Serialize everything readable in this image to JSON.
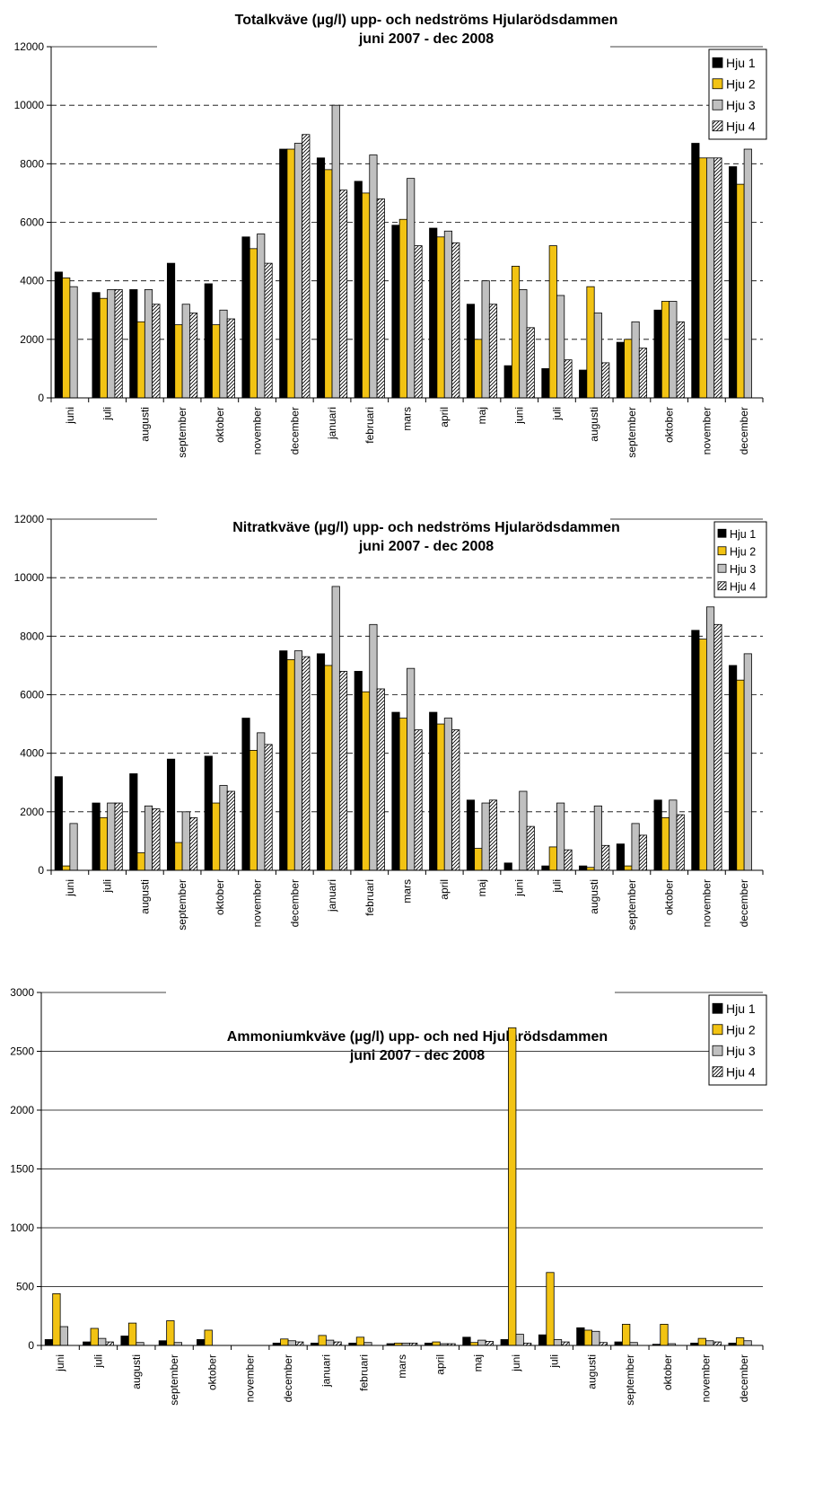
{
  "colors": {
    "hju1": "#000000",
    "hju2": "#f2c313",
    "hju3": "#c0c0c0",
    "hju4_hatch": "#000000",
    "grid": "#000000",
    "axis": "#000000"
  },
  "chart_data": [
    {
      "type": "bar",
      "title": "Totalkväve (µg/l) upp- och nedströms Hjularödsdammen",
      "subtitle": "juni 2007 - dec 2008",
      "xlabel": "",
      "ylabel": "",
      "ylim": [
        0,
        12000
      ],
      "yticks": [
        0,
        2000,
        4000,
        6000,
        8000,
        10000,
        12000
      ],
      "grid": "dashed",
      "legend": "top-right",
      "categories": [
        "juni",
        "juli",
        "augusti",
        "september",
        "oktober",
        "november",
        "december",
        "januari",
        "februari",
        "mars",
        "april",
        "maj",
        "juni",
        "juli",
        "augusti",
        "september",
        "oktober",
        "november",
        "december"
      ],
      "series": [
        {
          "name": "Hju 1",
          "values": [
            4300,
            3600,
            3700,
            4600,
            3900,
            5500,
            8500,
            8200,
            7400,
            5900,
            5800,
            3200,
            1100,
            1000,
            950,
            1900,
            3000,
            8700,
            7900
          ]
        },
        {
          "name": "Hju 2",
          "values": [
            4100,
            3400,
            2600,
            2500,
            2500,
            5100,
            8500,
            7800,
            7000,
            6100,
            5500,
            2000,
            4500,
            5200,
            3800,
            2000,
            3300,
            8200,
            7300
          ]
        },
        {
          "name": "Hju 3",
          "values": [
            3800,
            3700,
            3700,
            3200,
            3000,
            5600,
            8700,
            10000,
            8300,
            7500,
            5700,
            4000,
            3700,
            3500,
            2900,
            2600,
            3300,
            8200,
            8500
          ]
        },
        {
          "name": "Hju 4",
          "values": [
            null,
            3700,
            3200,
            2900,
            2700,
            4600,
            9000,
            7100,
            6800,
            5200,
            5300,
            3200,
            2400,
            1300,
            1200,
            1700,
            2600,
            8200,
            null
          ]
        }
      ]
    },
    {
      "type": "bar",
      "title": "Nitratkväve (µg/l) upp- och nedströms Hjularödsdammen",
      "subtitle": "juni 2007 - dec 2008",
      "xlabel": "",
      "ylabel": "",
      "ylim": [
        0,
        12000
      ],
      "yticks": [
        0,
        2000,
        4000,
        6000,
        8000,
        10000,
        12000
      ],
      "grid": "dashed",
      "legend": "top-right",
      "categories": [
        "juni",
        "juli",
        "augusti",
        "september",
        "oktober",
        "november",
        "december",
        "januari",
        "februari",
        "mars",
        "april",
        "maj",
        "juni",
        "juli",
        "augusti",
        "september",
        "oktober",
        "november",
        "december"
      ],
      "series": [
        {
          "name": "Hju 1",
          "values": [
            3200,
            2300,
            3300,
            3800,
            3900,
            5200,
            7500,
            7400,
            6800,
            5400,
            5400,
            2400,
            250,
            150,
            150,
            900,
            2400,
            8200,
            7000
          ]
        },
        {
          "name": "Hju 2",
          "values": [
            150,
            1800,
            600,
            950,
            2300,
            4100,
            7200,
            7000,
            6100,
            5200,
            5000,
            750,
            null,
            800,
            100,
            150,
            1800,
            7900,
            6500
          ]
        },
        {
          "name": "Hju 3",
          "values": [
            1600,
            2300,
            2200,
            2000,
            2900,
            4700,
            7500,
            9700,
            8400,
            6900,
            5200,
            2300,
            2700,
            2300,
            2200,
            1600,
            2400,
            9000,
            7400
          ]
        },
        {
          "name": "Hju 4",
          "values": [
            null,
            2300,
            2100,
            1800,
            2700,
            4300,
            7300,
            6800,
            6200,
            4800,
            4800,
            2400,
            1500,
            700,
            850,
            1200,
            1900,
            8400,
            null
          ]
        }
      ]
    },
    {
      "type": "bar",
      "title": "Ammoniumkväve (µg/l) upp- och ned Hjularödsdammen",
      "subtitle": "juni 2007 - dec 2008",
      "xlabel": "",
      "ylabel": "",
      "ylim": [
        0,
        3000
      ],
      "yticks": [
        0,
        500,
        1000,
        1500,
        2000,
        2500,
        3000
      ],
      "grid": "solid",
      "legend": "top-right",
      "categories": [
        "juni",
        "juli",
        "augusti",
        "september",
        "oktober",
        "november",
        "december",
        "januari",
        "februari",
        "mars",
        "april",
        "maj",
        "juni",
        "juli",
        "augusti",
        "september",
        "oktober",
        "november",
        "december"
      ],
      "series": [
        {
          "name": "Hju 1",
          "values": [
            50,
            30,
            80,
            40,
            50,
            null,
            20,
            20,
            20,
            15,
            20,
            70,
            50,
            90,
            150,
            30,
            10,
            20,
            20
          ]
        },
        {
          "name": "Hju 2",
          "values": [
            440,
            145,
            190,
            210,
            130,
            null,
            55,
            85,
            70,
            20,
            30,
            25,
            2700,
            620,
            130,
            180,
            180,
            60,
            65
          ]
        },
        {
          "name": "Hju 3",
          "values": [
            160,
            60,
            25,
            25,
            null,
            null,
            40,
            45,
            25,
            20,
            15,
            45,
            95,
            50,
            120,
            25,
            15,
            40,
            40
          ]
        },
        {
          "name": "Hju 4",
          "values": [
            null,
            30,
            null,
            null,
            null,
            null,
            30,
            30,
            null,
            20,
            15,
            35,
            20,
            30,
            25,
            null,
            null,
            30,
            null
          ]
        }
      ]
    }
  ]
}
